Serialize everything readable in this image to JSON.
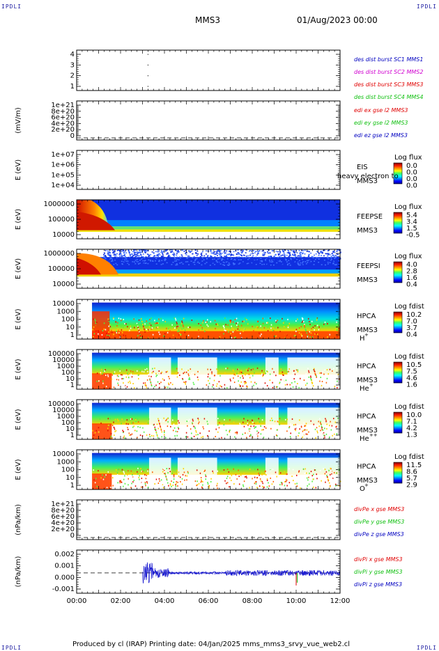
{
  "header": {
    "corner_label": "IPDLI",
    "spacecraft": "MMS3",
    "datetime": "01/Aug/2023 00:00"
  },
  "footer": {
    "text": "Produced by cl (IRAP)   Printing date: 04/Jan/2025   mms_mms3_srvy_vue_web2.cl"
  },
  "colors": {
    "blue": "#0000c0",
    "magenta": "#d000d0",
    "red": "#e00000",
    "green": "#10c010"
  },
  "chart_data": {
    "type": "stacked-panels",
    "x_axis": {
      "ticks": [
        "00:00",
        "02:00",
        "04:00",
        "06:00",
        "08:00",
        "10:00",
        "12:00"
      ],
      "range_hours": [
        0,
        12
      ]
    },
    "panels": [
      {
        "id": "burst",
        "type": "scatter",
        "ylabel": "",
        "yticks": [
          "4",
          "3",
          "2",
          "1"
        ],
        "ylim": [
          0.5,
          4.5
        ],
        "points": [
          {
            "x": 3.25,
            "y": 4
          },
          {
            "x": 3.25,
            "y": 3
          },
          {
            "x": 3.25,
            "y": 2
          },
          {
            "x": 3.25,
            "y": 1
          }
        ],
        "legend": [
          {
            "text": "des dist burst SC1 MMS1",
            "color": "#0000c0"
          },
          {
            "text": "des dist burst SC2 MMS2",
            "color": "#d000d0"
          },
          {
            "text": "des dist burst SC3 MMS3",
            "color": "#e00000"
          },
          {
            "text": "des dist burst SC4 MMS4",
            "color": "#10c010"
          }
        ]
      },
      {
        "id": "edi",
        "type": "line",
        "ylabel": "(mV/m)",
        "yticks": [
          "1e+21",
          "8e+20",
          "6e+20",
          "4e+20",
          "2e+20",
          "0"
        ],
        "ylim": [
          0,
          1e+21
        ],
        "zero_line": true,
        "legend": [
          {
            "text": "edi ex gse l2 MMS3",
            "color": "#e00000"
          },
          {
            "text": "edi ey gse l2 MMS3",
            "color": "#10c010"
          },
          {
            "text": "edi ez gse l2 MMS3",
            "color": "#0000c0"
          }
        ]
      },
      {
        "id": "eis",
        "type": "spectrogram",
        "ylabel": "E (eV)",
        "yticks": [
          "1e+07",
          "1e+06",
          "1e+05",
          "1e+04"
        ],
        "labels": [
          "EIS",
          "MMS3"
        ],
        "extra_label": "heavy electron to",
        "colorbar": {
          "title": "Log flux",
          "values": [
            "0.0",
            "0.0",
            "0.0",
            "0.0"
          ]
        }
      },
      {
        "id": "feepse",
        "type": "spectrogram",
        "ylabel": "E (eV)",
        "yticks": [
          "1000000",
          "100000",
          "10000"
        ],
        "labels": [
          "FEEPSE",
          "MMS3"
        ],
        "colorbar": {
          "title": "Log flux",
          "values": [
            "5.4",
            "3.4",
            "1.5",
            "-0.5"
          ]
        }
      },
      {
        "id": "feepsi",
        "type": "spectrogram",
        "ylabel": "E (eV)",
        "yticks": [
          "1000000",
          "100000",
          "10000"
        ],
        "labels": [
          "FEEPSI",
          "MMS3"
        ],
        "colorbar": {
          "title": "Log flux",
          "values": [
            "4.0",
            "2.8",
            "1.6",
            "0.4"
          ]
        }
      },
      {
        "id": "hpca_h",
        "type": "spectrogram",
        "ylabel": "E (eV)",
        "yticks": [
          "10000",
          "1000",
          "100",
          "10",
          "1"
        ],
        "labels": [
          "HPCA",
          "MMS3"
        ],
        "species": "H",
        "charge": "+",
        "colorbar": {
          "title": "Log fdist",
          "values": [
            "10.2",
            "7.0",
            "3.7",
            "0.4"
          ]
        }
      },
      {
        "id": "hpca_he1",
        "type": "spectrogram",
        "ylabel": "E (eV)",
        "yticks": [
          "100000",
          "10000",
          "1000",
          "100",
          "10",
          "1"
        ],
        "labels": [
          "HPCA",
          "MMS3"
        ],
        "species": "He",
        "charge": "+",
        "colorbar": {
          "title": "Log fdist",
          "values": [
            "10.5",
            "7.5",
            "4.6",
            "1.6"
          ]
        }
      },
      {
        "id": "hpca_he2",
        "type": "spectrogram",
        "ylabel": "E (eV)",
        "yticks": [
          "100000",
          "10000",
          "1000",
          "100",
          "10",
          "1"
        ],
        "labels": [
          "HPCA",
          "MMS3"
        ],
        "species": "He",
        "charge": "++",
        "colorbar": {
          "title": "Log fdist",
          "values": [
            "10.0",
            "7.1",
            "4.2",
            "1.3"
          ]
        }
      },
      {
        "id": "hpca_o",
        "type": "spectrogram",
        "ylabel": "E (eV)",
        "yticks": [
          "10000",
          "1000",
          "100",
          "10",
          "1"
        ],
        "labels": [
          "HPCA",
          "MMS3"
        ],
        "species": "O",
        "charge": "+",
        "colorbar": {
          "title": "Log fdist",
          "values": [
            "11.5",
            "8.6",
            "5.7",
            "2.9"
          ]
        }
      },
      {
        "id": "divpe",
        "type": "line",
        "ylabel": "(nPa/km)",
        "yticks": [
          "1e+21",
          "8e+20",
          "6e+20",
          "4e+20",
          "2e+20",
          "0"
        ],
        "ylim": [
          0,
          1e+21
        ],
        "zero_line": true,
        "legend": [
          {
            "text": "divPe x gse MMS3",
            "color": "#e00000"
          },
          {
            "text": "divPe y gse MMS3",
            "color": "#10c010"
          },
          {
            "text": "divPe z gse MMS3",
            "color": "#0000c0"
          }
        ]
      },
      {
        "id": "divpi",
        "type": "line",
        "ylabel": "(nPa/km)",
        "yticks": [
          "0.002",
          "0.001",
          "0.000",
          "-0.001"
        ],
        "ylim": [
          -0.0017,
          0.0021
        ],
        "zero_line": true,
        "data_start_hours": 3.0,
        "legend": [
          {
            "text": "divPi x gse MMS3",
            "color": "#e00000"
          },
          {
            "text": "divPi y gse MMS3",
            "color": "#10c010"
          },
          {
            "text": "divPi z gse MMS3",
            "color": "#0000c0"
          }
        ]
      }
    ]
  }
}
